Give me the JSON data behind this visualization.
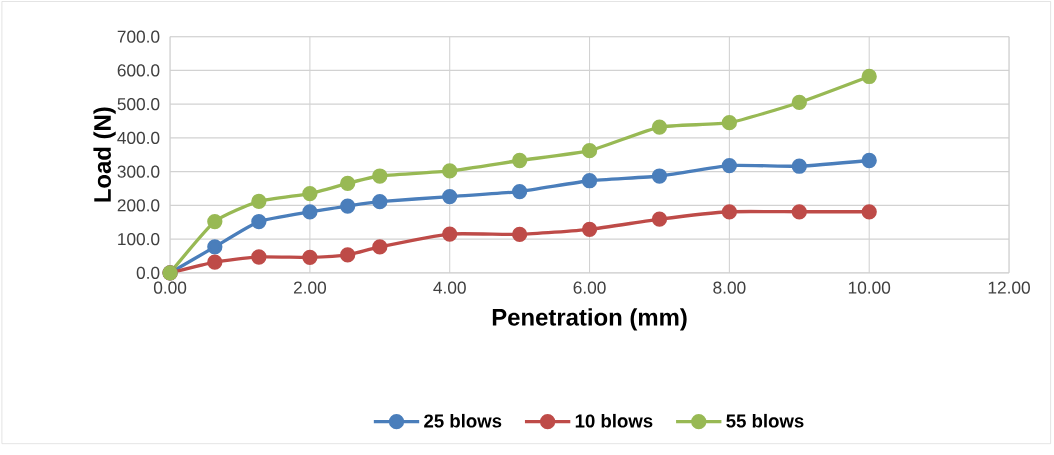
{
  "chart_data": {
    "type": "line",
    "xlabel": "Penetration (mm)",
    "ylabel": "Load (N)",
    "x": [
      0,
      0.64,
      1.27,
      2.0,
      2.54,
      3.0,
      4.0,
      5.0,
      6.0,
      7.0,
      8.0,
      9.0,
      10.0
    ],
    "series": [
      {
        "name": "25 blows",
        "color": "#4a7ebb",
        "values": [
          0,
          77,
          152,
          181,
          198,
          211,
          226,
          241,
          273,
          287,
          318,
          316,
          333
        ]
      },
      {
        "name": "10 blows",
        "color": "#be4b48",
        "values": [
          0,
          32,
          47,
          46,
          53,
          77,
          115,
          114,
          129,
          159,
          181,
          181,
          181
        ]
      },
      {
        "name": "55 blows",
        "color": "#98b954",
        "values": [
          0,
          152,
          212,
          235,
          265,
          287,
          302,
          333,
          362,
          432,
          445,
          505,
          582
        ]
      }
    ],
    "xlim": [
      0,
      12
    ],
    "ylim": [
      0,
      700
    ],
    "xticks": [
      {
        "value": 0,
        "label": "0.00"
      },
      {
        "value": 2,
        "label": "2.00"
      },
      {
        "value": 4,
        "label": "4.00"
      },
      {
        "value": 6,
        "label": "6.00"
      },
      {
        "value": 8,
        "label": "8.00"
      },
      {
        "value": 10,
        "label": "10.00"
      },
      {
        "value": 12,
        "label": "12.00"
      }
    ],
    "yticks": [
      {
        "value": 0,
        "label": "0.0"
      },
      {
        "value": 100,
        "label": "100.0"
      },
      {
        "value": 200,
        "label": "200.0"
      },
      {
        "value": 300,
        "label": "300.0"
      },
      {
        "value": 400,
        "label": "400.0"
      },
      {
        "value": 500,
        "label": "500.0"
      },
      {
        "value": 600,
        "label": "600.0"
      },
      {
        "value": 700,
        "label": "700.0"
      }
    ],
    "grid": true,
    "legend": "bottom",
    "marker": "circle",
    "line_style": "solid"
  }
}
